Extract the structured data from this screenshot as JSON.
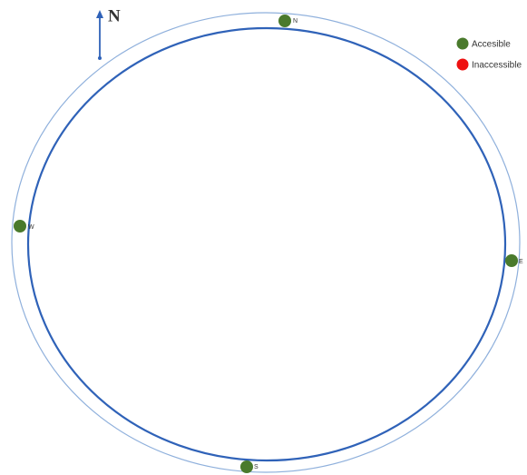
{
  "compass": {
    "label": "N"
  },
  "nodes": [
    {
      "label": "N"
    },
    {
      "label": "W"
    },
    {
      "label": "E"
    },
    {
      "label": "S"
    }
  ],
  "legend": [
    {
      "label": "Accesible"
    },
    {
      "label": "Inaccessible"
    }
  ]
}
